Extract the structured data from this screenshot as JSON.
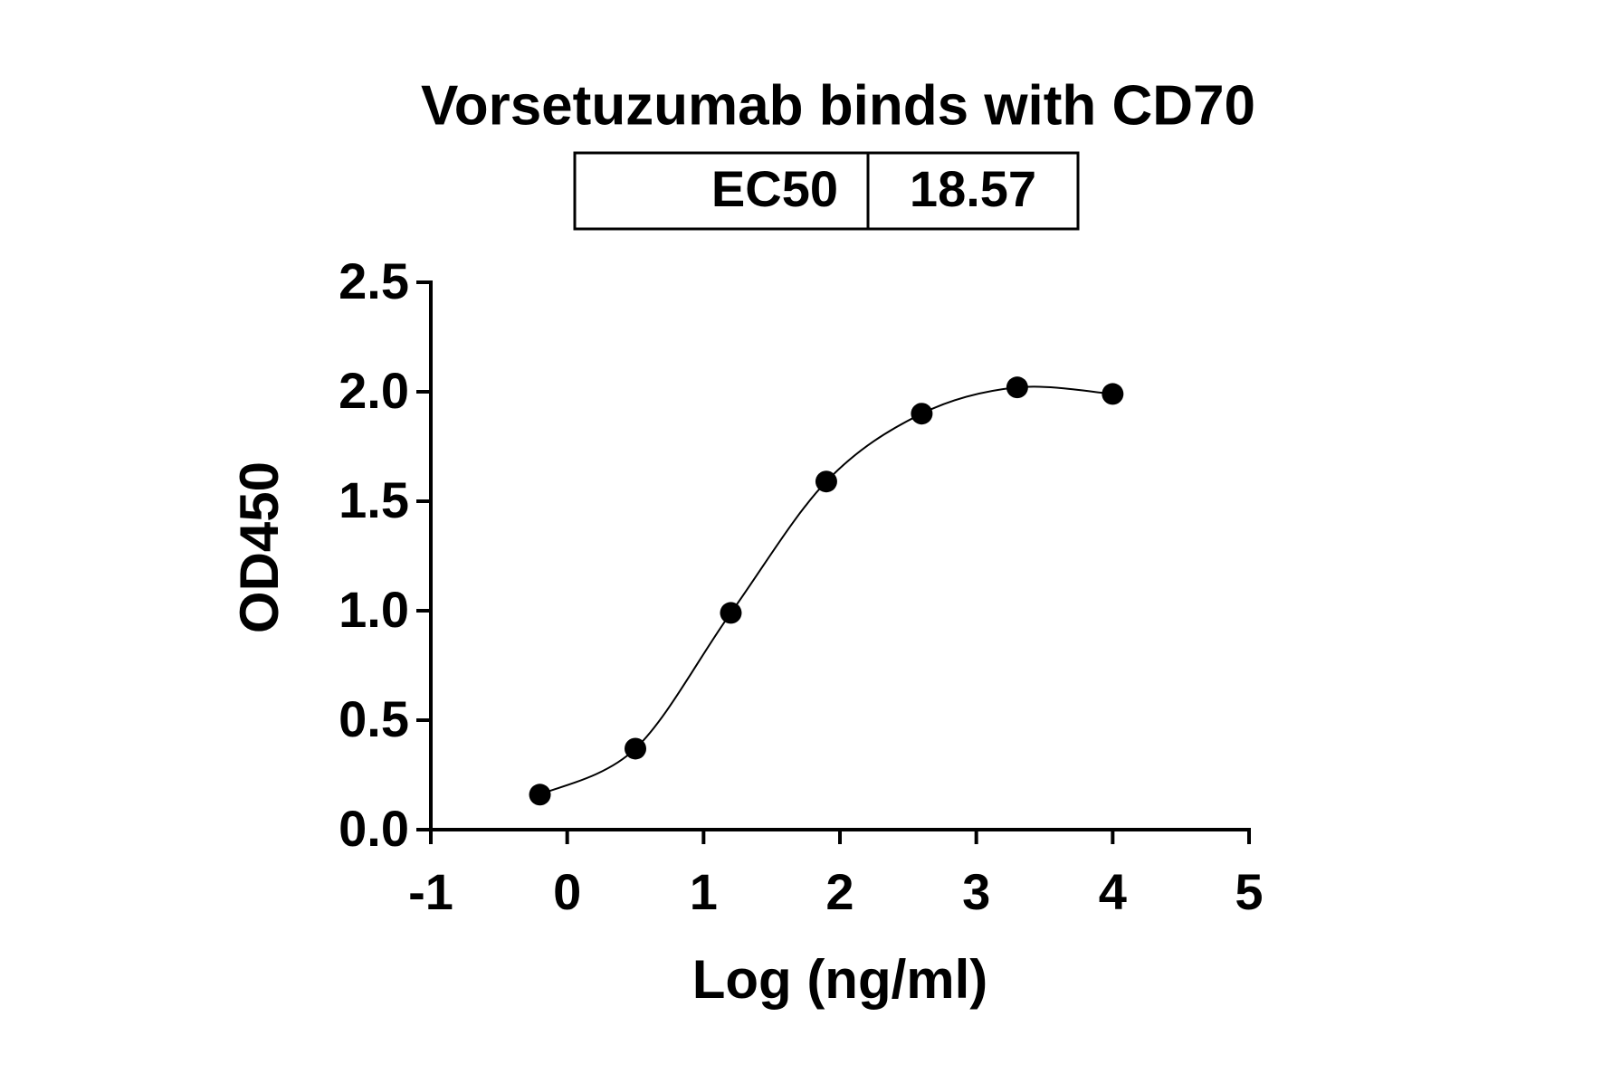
{
  "chart_data": {
    "type": "scatter",
    "title": "Vorsetuzumab binds with CD70",
    "ec50_table": {
      "label": "EC50",
      "value": 18.57
    },
    "x_label": "Log (ng/ml)",
    "y_label": "OD450",
    "x": [
      -0.2,
      0.5,
      1.2,
      1.9,
      2.6,
      3.3,
      4.0
    ],
    "values": [
      0.16,
      0.37,
      0.99,
      1.59,
      1.9,
      2.02,
      1.99
    ],
    "color": "#000000",
    "fit_line": true,
    "xlim": [
      -1,
      5
    ],
    "xticks": [
      -1,
      0,
      1,
      2,
      3,
      4,
      5
    ],
    "ylim": [
      0,
      2.5
    ],
    "yticks": [
      {
        "value": 0,
        "label": "0.0"
      },
      0.5,
      {
        "value": 1,
        "label": "1.0"
      },
      1.5,
      {
        "value": 2,
        "label": "2.0"
      },
      2.5
    ],
    "grid": false
  }
}
